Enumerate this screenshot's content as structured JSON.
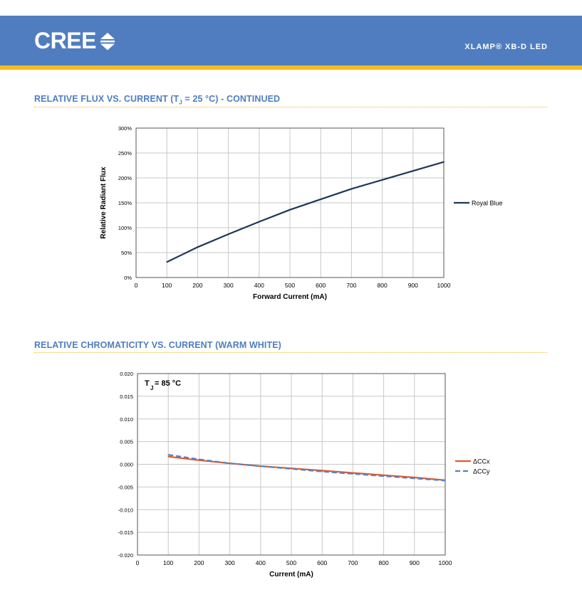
{
  "header": {
    "logo_text": "CREE",
    "product": "XLAMP® XB-D LED"
  },
  "sections": [
    {
      "title_main": "RELATIVE FLUX VS. CURRENT (T",
      "title_sub": "J",
      "title_tail": " = 25 °C) - CONTINUED"
    },
    {
      "title": "RELATIVE CHROMATICITY VS. CURRENT (WARM WHITE)"
    }
  ],
  "colors": {
    "brand_blue": "#507dc0",
    "accent_yellow": "#f2bd1d",
    "series_navy": "#1f3657",
    "series_orange": "#e15a25",
    "series_blue_dash": "#5b7fc4"
  },
  "chart_data": [
    {
      "type": "line",
      "xlabel": "Forward Current (mA)",
      "ylabel": "Relative Radiant Flux",
      "xlim": [
        0,
        1000
      ],
      "ylim": [
        0,
        300
      ],
      "x_ticks": [
        "0",
        "100",
        "200",
        "300",
        "400",
        "500",
        "600",
        "700",
        "800",
        "900",
        "1000"
      ],
      "y_ticks": [
        "0%",
        "50%",
        "100%",
        "150%",
        "200%",
        "250%",
        "300%"
      ],
      "y_tick_values": [
        0,
        50,
        100,
        150,
        200,
        250,
        300
      ],
      "grid": true,
      "legend_position": "right",
      "series": [
        {
          "name": "Royal Blue",
          "color": "#1f3657",
          "dash": false,
          "x": [
            100,
            200,
            300,
            400,
            500,
            600,
            700,
            800,
            900,
            1000
          ],
          "y": [
            31,
            61,
            87,
            112,
            136,
            157,
            178,
            196,
            214,
            232
          ]
        }
      ]
    },
    {
      "type": "line",
      "xlabel": "Current (mA)",
      "ylabel": "",
      "annotation_main": "T",
      "annotation_sub": "J",
      "annotation_tail": " = 85 °C",
      "xlim": [
        0,
        1000
      ],
      "ylim": [
        -0.02,
        0.02
      ],
      "x_ticks": [
        "0",
        "100",
        "200",
        "300",
        "400",
        "500",
        "600",
        "700",
        "800",
        "900",
        "1000"
      ],
      "y_ticks": [
        "-0.020",
        "-0.015",
        "-0.010",
        "-0.005",
        "0.000",
        "0.005",
        "0.010",
        "0.015",
        "0.020"
      ],
      "y_tick_values": [
        -0.02,
        -0.015,
        -0.01,
        -0.005,
        0,
        0.005,
        0.01,
        0.015,
        0.02
      ],
      "grid": true,
      "legend_position": "right",
      "series": [
        {
          "name": "ΔCCx",
          "color": "#e15a25",
          "dash": false,
          "x": [
            100,
            200,
            300,
            400,
            500,
            600,
            700,
            800,
            900,
            1000
          ],
          "y": [
            0.0017,
            0.0009,
            0.0002,
            -0.0004,
            -0.0009,
            -0.0014,
            -0.0019,
            -0.0024,
            -0.0029,
            -0.0035
          ]
        },
        {
          "name": "ΔCCy",
          "color": "#5b7fc4",
          "dash": true,
          "x": [
            100,
            200,
            300,
            400,
            500,
            600,
            700,
            800,
            900,
            1000
          ],
          "y": [
            0.0021,
            0.0011,
            0.0002,
            -0.0004,
            -0.001,
            -0.0016,
            -0.0021,
            -0.0026,
            -0.0031,
            -0.0036
          ]
        }
      ]
    }
  ]
}
